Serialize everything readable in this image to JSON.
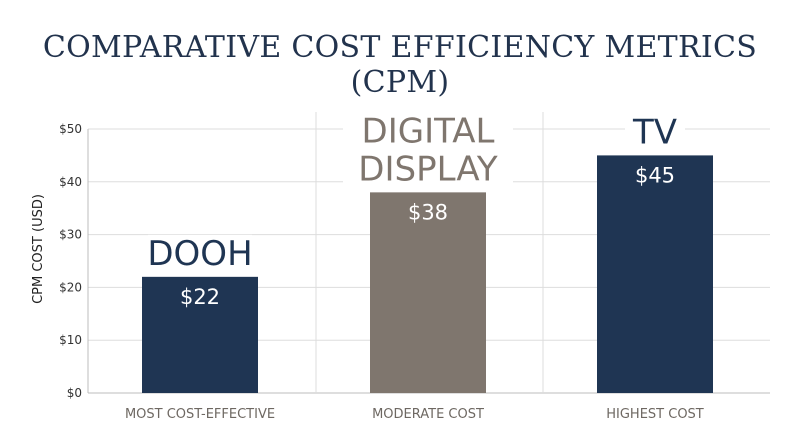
{
  "chart_data": {
    "type": "bar",
    "title": "COMPARATIVE COST EFFICIENCY METRICS (CPM)",
    "ylabel": "CPM COST (USD)",
    "xlabel": "",
    "ylim": [
      0,
      50
    ],
    "yticks": [
      0,
      10,
      20,
      30,
      40,
      50
    ],
    "ytick_labels": [
      "$0",
      "$10",
      "$20",
      "$30",
      "$40",
      "$50"
    ],
    "grid": true,
    "categories": [
      "DOOH",
      "DIGITAL DISPLAY",
      "TV"
    ],
    "category_title_lines": [
      [
        "DOOH"
      ],
      [
        "DIGITAL",
        "DISPLAY"
      ],
      [
        "TV"
      ]
    ],
    "sublabels": [
      "MOST COST-EFFECTIVE",
      "MODERATE COST",
      "HIGHEST COST"
    ],
    "values": [
      22,
      38,
      45
    ],
    "data_labels": [
      "$22",
      "$38",
      "$45"
    ],
    "colors": [
      "#1f3553",
      "#7f766e",
      "#1f3553"
    ],
    "category_title_colors": [
      "#1f3553",
      "#7f766e",
      "#1f3553"
    ]
  }
}
